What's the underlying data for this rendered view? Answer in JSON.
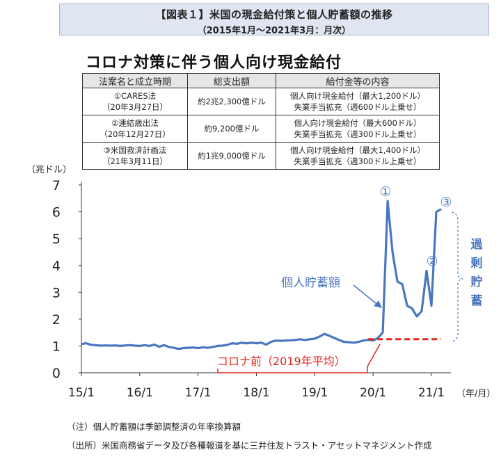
{
  "header": {
    "title": "【図表１】米国の現金給付策と個人貯蓄額の推移",
    "subtitle": "（2015年1月～2021年3月：月次）"
  },
  "measures": {
    "heading": "コロナ対策に伴う個人向け現金給付",
    "columns": [
      "法案名と成立時期",
      "総支出額",
      "給付金等の内容"
    ],
    "rows": [
      {
        "name": "①CARES法",
        "date": "（20年3月27日）",
        "amount": "約2兆2,300億ドル",
        "detail1": "個人向け現金給付（最大1,200ドル）",
        "detail2": "失業手当拡充（週600ドル上乗せ）"
      },
      {
        "name": "②連結歳出法",
        "date": "（20年12月27日）",
        "amount": "約9,200億ドル",
        "detail1": "個人向け現金給付（最大600ドル）",
        "detail2": "失業手当拡充（週300ドル上乗せ）"
      },
      {
        "name": "③米国救済計画法",
        "date": "（21年3月11日）",
        "amount": "約1兆9,000億ドル",
        "detail1": "個人向け現金給付（最大1,400ドル）",
        "detail2": "失業手当拡充（週300ドル上乗せ）"
      }
    ]
  },
  "chart_data": {
    "type": "line",
    "ylabel": "（兆ドル）",
    "xlabel": "（年/月）",
    "ylim": [
      0,
      7
    ],
    "yticks": [
      0,
      1,
      2,
      3,
      4,
      5,
      6,
      7
    ],
    "xticks": [
      "15/1",
      "16/1",
      "17/1",
      "18/1",
      "19/1",
      "20/1",
      "21/1"
    ],
    "series": [
      {
        "name": "個人貯蓄額",
        "color": "#4a76c0",
        "start": "2015-01",
        "values": [
          1.07,
          1.1,
          1.04,
          1.03,
          1.01,
          1.02,
          1.01,
          1.02,
          1.0,
          1.02,
          1.03,
          1.01,
          1.0,
          1.03,
          1.0,
          1.05,
          0.97,
          1.03,
          0.96,
          0.93,
          0.89,
          0.92,
          0.93,
          0.94,
          0.92,
          0.95,
          0.93,
          0.96,
          1.0,
          1.01,
          1.04,
          1.1,
          1.08,
          1.12,
          1.1,
          1.12,
          1.1,
          1.12,
          1.05,
          1.15,
          1.2,
          1.19,
          1.2,
          1.21,
          1.22,
          1.25,
          1.22,
          1.25,
          1.27,
          1.35,
          1.45,
          1.38,
          1.3,
          1.22,
          1.15,
          1.14,
          1.12,
          1.15,
          1.2,
          1.23,
          1.2,
          1.3,
          1.5,
          6.4,
          4.5,
          3.4,
          3.3,
          2.5,
          2.4,
          2.1,
          2.3,
          3.8,
          2.5,
          6.0,
          6.1
        ]
      }
    ],
    "reference": {
      "name": "コロナ前（2019年平均）",
      "value": 1.25,
      "color": "#e3261f"
    },
    "annotations": {
      "series_label": "個人貯蓄額",
      "bracket_label": "過剰貯蓄",
      "markers": [
        "①",
        "②",
        "③"
      ]
    }
  },
  "notes": [
    "（注）個人貯蓄額は季節調整済の年率換算額",
    "（出所）米国商務省データ及び各種報道を基に三井住友トラスト・アセットマネジメント作成"
  ]
}
